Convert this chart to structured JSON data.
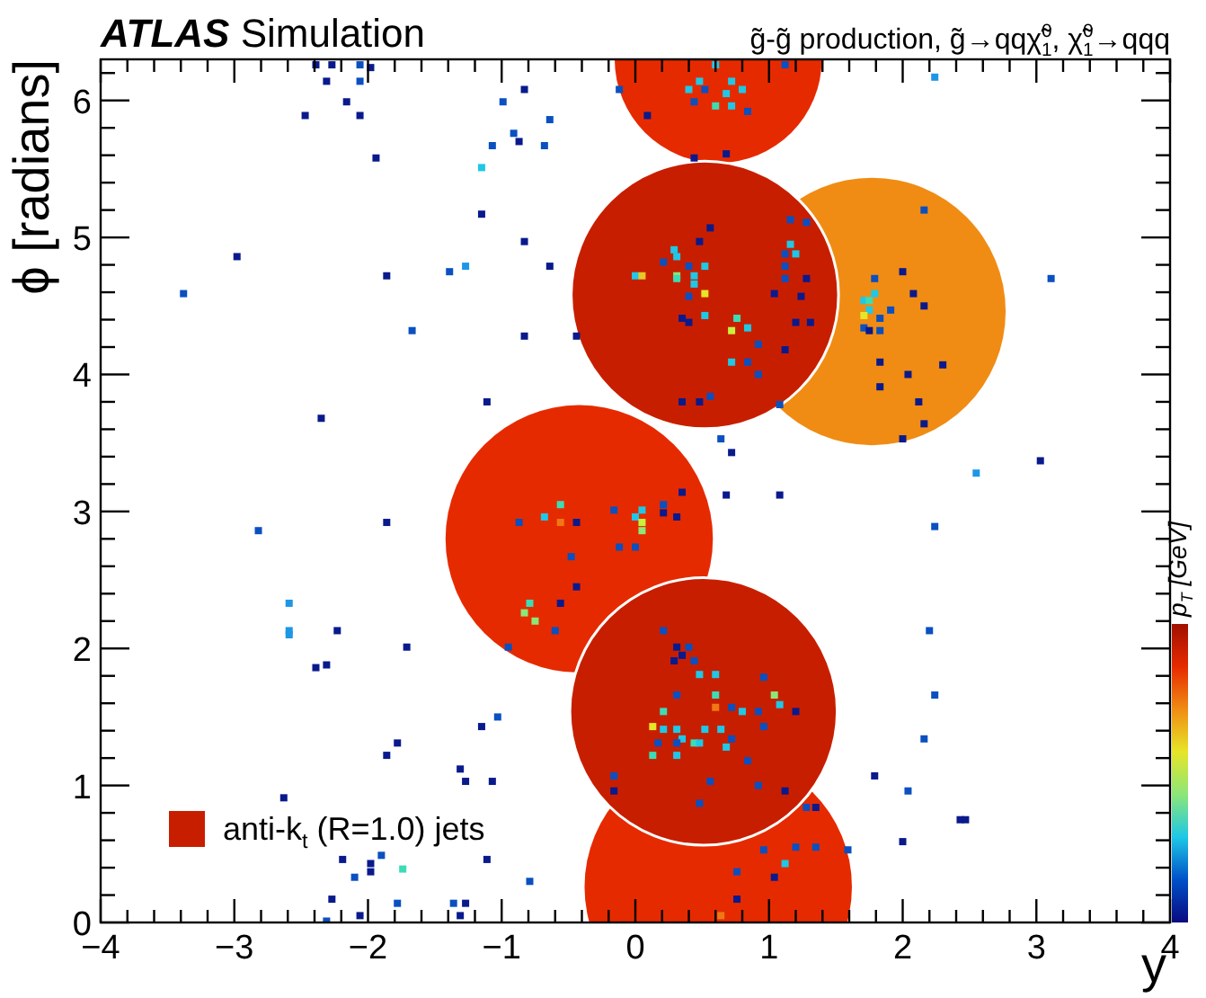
{
  "chart_data": {
    "type": "scatter",
    "title": "ATLAS Simulation",
    "subtitle": "g̃-g̃ production, g̃→qqχ̃$^{0}$$_{1}$, χ̃$^{0}$$_{1}$→qqq",
    "xlabel": "y",
    "ylabel": "ϕ [radians]",
    "clabel": "p$_{T}$ [GeV]",
    "xlim": [
      -4,
      4
    ],
    "ylim": [
      0,
      6.3
    ],
    "xticks": [
      {
        "value": -4,
        "label": "−4"
      },
      {
        "value": -3.8,
        "label": null
      },
      {
        "value": -3.6,
        "label": null
      },
      {
        "value": -3.4,
        "label": null
      },
      {
        "value": -3.2,
        "label": null
      },
      {
        "value": -3,
        "label": "−3"
      },
      {
        "value": -2.8,
        "label": null
      },
      {
        "value": -2.6,
        "label": null
      },
      {
        "value": -2.4,
        "label": null
      },
      {
        "value": -2.2,
        "label": null
      },
      {
        "value": -2,
        "label": "−2"
      },
      {
        "value": -1.8,
        "label": null
      },
      {
        "value": -1.6,
        "label": null
      },
      {
        "value": -1.4,
        "label": null
      },
      {
        "value": -1.2,
        "label": null
      },
      {
        "value": -1,
        "label": "−1"
      },
      {
        "value": -0.8,
        "label": null
      },
      {
        "value": -0.6,
        "label": null
      },
      {
        "value": -0.4,
        "label": null
      },
      {
        "value": -0.2,
        "label": null
      },
      0,
      {
        "value": 0.2,
        "label": null
      },
      {
        "value": 0.4,
        "label": null
      },
      {
        "value": 0.6,
        "label": null
      },
      {
        "value": 0.8,
        "label": null
      },
      1,
      {
        "value": 1.2,
        "label": null
      },
      {
        "value": 1.4,
        "label": null
      },
      {
        "value": 1.6,
        "label": null
      },
      {
        "value": 1.8,
        "label": null
      },
      2,
      {
        "value": 2.2,
        "label": null
      },
      {
        "value": 2.4,
        "label": null
      },
      {
        "value": 2.6,
        "label": null
      },
      {
        "value": 2.8,
        "label": null
      },
      3,
      {
        "value": 3.2,
        "label": null
      },
      {
        "value": 3.4,
        "label": null
      },
      {
        "value": 3.6,
        "label": null
      },
      {
        "value": 3.8,
        "label": null
      },
      4
    ],
    "yticks": [
      0,
      {
        "value": 0.2,
        "label": null
      },
      {
        "value": 0.4,
        "label": null
      },
      {
        "value": 0.6,
        "label": null
      },
      {
        "value": 0.8,
        "label": null
      },
      1,
      {
        "value": 1.2,
        "label": null
      },
      {
        "value": 1.4,
        "label": null
      },
      {
        "value": 1.6,
        "label": null
      },
      {
        "value": 1.8,
        "label": null
      },
      2,
      {
        "value": 2.2,
        "label": null
      },
      {
        "value": 2.4,
        "label": null
      },
      {
        "value": 2.6,
        "label": null
      },
      {
        "value": 2.8,
        "label": null
      },
      3,
      {
        "value": 3.2,
        "label": null
      },
      {
        "value": 3.4,
        "label": null
      },
      {
        "value": 3.6,
        "label": null
      },
      {
        "value": 3.8,
        "label": null
      },
      4,
      {
        "value": 4.2,
        "label": null
      },
      {
        "value": 4.4,
        "label": null
      },
      {
        "value": 4.6,
        "label": null
      },
      {
        "value": 4.8,
        "label": null
      },
      5,
      {
        "value": 5.2,
        "label": null
      },
      {
        "value": 5.4,
        "label": null
      },
      {
        "value": 5.6,
        "label": null
      },
      {
        "value": 5.8,
        "label": null
      },
      6,
      {
        "value": 6.2,
        "label": null
      }
    ],
    "grid": false,
    "legend": "bottom left",
    "series": [
      {
        "type": "bubble",
        "name": "anti-k$_{t}$ (R=1.0) jets",
        "color": "#c81e00",
        "x": [
          0.62,
          0.62,
          -0.42,
          1.77,
          0.52,
          0.51
        ],
        "values": [
          0.26,
          6.3,
          2.8,
          4.46,
          4.58,
          1.54
        ],
        "sizes": [
          1,
          0.6,
          1,
          1,
          1,
          1
        ],
        "colors": [
          "#e62a00",
          "#e62a00",
          "#e62a00",
          "#f08c14",
          "#c81e00",
          "#c81e00"
        ]
      },
      {
        "type": "scatter",
        "marker": "square",
        "x": [
          -2.39,
          -2.27,
          -2.06,
          -1.98,
          -2.31,
          -2.06,
          -2.16,
          -2.47,
          -2.06,
          -1.94,
          -0.83,
          -0.99,
          -0.91,
          -0.87,
          -1.07,
          -0.68,
          -0.64,
          -1.15,
          -1.15,
          -0.83,
          -0.64,
          -1.27,
          -1.39,
          -1.86,
          -2.98,
          -3.38,
          -1.67,
          -0.83,
          -0.44,
          -1.11,
          -2.35,
          -0.12,
          0.09,
          0.4,
          0.48,
          0.52,
          0.72,
          0.68,
          0.8,
          0.44,
          0.6,
          0.72,
          0.84,
          0.44,
          0.68,
          0.6,
          1.12,
          2.24,
          0.56,
          0.48,
          0.29,
          0.21,
          0.31,
          0.4,
          0.52,
          0.0,
          0.05,
          0.31,
          0.44,
          0.31,
          0.44,
          0.52,
          0.4,
          0.35,
          0.4,
          0.52,
          0.76,
          0.72,
          0.84,
          0.92,
          0.72,
          0.84,
          0.92,
          0.35,
          0.48,
          0.56,
          1.16,
          1.28,
          1.16,
          1.2,
          1.12,
          1.12,
          1.12,
          1.28,
          1.04,
          1.24,
          1.2,
          1.31,
          1.12,
          1.08,
          2.16,
          2.0,
          1.79,
          2.08,
          2.16,
          1.71,
          1.75,
          1.79,
          1.75,
          1.91,
          1.71,
          1.83,
          1.71,
          1.75,
          1.83,
          1.83,
          2.3,
          2.04,
          1.83,
          2.12,
          2.16,
          2.0,
          3.11,
          2.55,
          3.03,
          0.64,
          0.72,
          0.35,
          0.68,
          1.08,
          -0.87,
          -0.68,
          -0.56,
          -0.56,
          -0.44,
          -0.48,
          -0.44,
          -0.56,
          -0.79,
          -0.83,
          -0.75,
          -0.6,
          -0.95,
          -0.16,
          0.05,
          0.21,
          0.21,
          0.0,
          0.05,
          0.05,
          0.31,
          -0.12,
          0.0,
          0.21,
          0.31,
          0.4,
          0.35,
          0.29,
          0.44,
          0.48,
          0.6,
          0.31,
          0.6,
          0.21,
          0.6,
          0.72,
          0.8,
          0.92,
          0.96,
          1.04,
          1.08,
          1.2,
          0.13,
          0.21,
          0.31,
          0.52,
          0.64,
          0.35,
          0.17,
          0.31,
          0.44,
          0.48,
          0.72,
          0.68,
          0.31,
          0.13,
          0.96,
          0.84,
          -0.16,
          -0.16,
          0.56,
          0.92,
          1.12,
          0.48,
          1.28,
          1.35,
          0.96,
          1.2,
          1.35,
          1.12,
          0.76,
          1.04,
          0.76,
          0.64,
          1.59,
          2.24,
          2.2,
          2.24,
          2.16,
          1.79,
          2.04,
          2.43,
          2.47,
          2.0,
          -2.82,
          -2.59,
          -2.59,
          -2.59,
          -2.23,
          -2.39,
          -2.31,
          -1.86,
          -1.71,
          -1.03,
          -1.15,
          -1.78,
          -1.86,
          -1.31,
          -1.27,
          -1.07,
          -2.63,
          -2.19,
          -1.9,
          -1.98,
          -1.98,
          -2.1,
          -1.74,
          -1.11,
          -0.79,
          -2.27,
          -1.78,
          -1.36,
          -1.27,
          -2.06,
          -1.31,
          -2.31
        ],
        "values": [
          6.26,
          6.26,
          6.26,
          6.24,
          6.14,
          6.14,
          5.99,
          5.89,
          5.89,
          5.58,
          6.08,
          5.99,
          5.76,
          5.7,
          5.67,
          5.67,
          5.86,
          5.51,
          5.17,
          4.97,
          4.79,
          4.79,
          4.75,
          4.72,
          4.86,
          4.59,
          4.32,
          4.28,
          4.28,
          3.8,
          3.68,
          6.08,
          5.89,
          6.08,
          6.14,
          6.08,
          6.14,
          6.05,
          6.08,
          5.99,
          5.96,
          5.96,
          5.92,
          5.58,
          5.61,
          6.26,
          6.26,
          6.17,
          5.07,
          4.97,
          4.91,
          4.82,
          4.86,
          4.79,
          4.79,
          4.72,
          4.72,
          4.72,
          4.72,
          4.7,
          4.66,
          4.59,
          4.57,
          4.41,
          4.38,
          4.43,
          4.41,
          4.32,
          4.34,
          4.22,
          4.09,
          4.09,
          4.0,
          3.8,
          3.8,
          3.84,
          5.13,
          5.11,
          4.95,
          4.88,
          4.88,
          4.79,
          4.7,
          4.7,
          4.59,
          4.57,
          4.38,
          4.38,
          4.18,
          3.78,
          5.2,
          4.75,
          4.7,
          4.59,
          4.5,
          4.54,
          4.54,
          4.59,
          4.47,
          4.47,
          4.43,
          4.41,
          4.34,
          4.32,
          4.32,
          4.09,
          4.07,
          4.0,
          3.91,
          3.8,
          3.64,
          3.53,
          4.7,
          3.28,
          3.37,
          3.53,
          3.43,
          3.14,
          3.12,
          3.12,
          2.92,
          2.96,
          3.05,
          2.92,
          2.92,
          2.67,
          2.45,
          2.33,
          2.33,
          2.26,
          2.2,
          2.13,
          2.01,
          3.01,
          3.01,
          3.05,
          2.99,
          2.96,
          2.92,
          2.86,
          2.96,
          2.74,
          2.74,
          2.13,
          2.01,
          2.01,
          1.95,
          1.91,
          1.91,
          1.81,
          1.81,
          1.66,
          1.66,
          1.54,
          1.57,
          1.57,
          1.54,
          1.54,
          1.79,
          1.66,
          1.59,
          1.54,
          1.43,
          1.41,
          1.41,
          1.41,
          1.41,
          1.34,
          1.31,
          1.31,
          1.31,
          1.31,
          1.34,
          1.28,
          1.22,
          1.22,
          1.43,
          1.18,
          1.07,
          0.96,
          1.03,
          1.0,
          0.96,
          0.87,
          0.84,
          0.84,
          0.53,
          0.55,
          0.55,
          0.43,
          0.37,
          0.33,
          0.17,
          0.05,
          0.53,
          2.89,
          2.13,
          1.66,
          1.34,
          1.07,
          0.96,
          0.75,
          0.75,
          0.59,
          2.86,
          2.33,
          2.13,
          2.1,
          2.13,
          1.86,
          1.88,
          2.92,
          2.01,
          1.5,
          1.43,
          1.31,
          1.22,
          1.12,
          1.03,
          1.03,
          0.91,
          0.46,
          0.49,
          0.43,
          0.37,
          0.33,
          0.39,
          0.46,
          0.3,
          0.17,
          0.14,
          0.14,
          0.14,
          0.05,
          0.05,
          0.01
        ],
        "colors": [
          "#0a1a8c",
          "#0a1a8c",
          "#0a50c0",
          "#0a1a8c",
          "#0a1a8c",
          "#0a50c0",
          "#0a1a8c",
          "#0a1a8c",
          "#0a1a8c",
          "#0a1a8c",
          "#0a1a8c",
          "#0a50c0",
          "#0a50c0",
          "#0a1a8c",
          "#0a50c0",
          "#0a50c0",
          "#0a50c0",
          "#1ec8e6",
          "#0a1a8c",
          "#0a1a8c",
          "#0a1a8c",
          "#1e96e6",
          "#0a50c0",
          "#0a1a8c",
          "#0a1a8c",
          "#0a50c0",
          "#0a50c0",
          "#0a1a8c",
          "#0a1a8c",
          "#0a1a8c",
          "#0a1a8c",
          "#0a50c0",
          "#0a1a8c",
          "#1ec8e6",
          "#1ec8e6",
          "#0a50c0",
          "#1ec8e6",
          "#1ec8e6",
          "#1ec8e6",
          "#0a50c0",
          "#3cdcb4",
          "#1ec8e6",
          "#0a50c0",
          "#0a1a8c",
          "#0a1a8c",
          "#1ec8e6",
          "#0a50c0",
          "#1e96e6",
          "#0a1a8c",
          "#0a1a8c",
          "#1ec8e6",
          "#0a50c0",
          "#1ec8e6",
          "#0a50c0",
          "#1ec8e6",
          "#1ec8e6",
          "#e6c828",
          "#8ce678",
          "#1ec8e6",
          "#3cdcb4",
          "#1ec8e6",
          "#e6e628",
          "#0a50c0",
          "#0a1a8c",
          "#0a1a8c",
          "#1ec8e6",
          "#3cdcb4",
          "#c8f03c",
          "#1ec8e6",
          "#0a50c0",
          "#1ec8e6",
          "#0a50c0",
          "#0a50c0",
          "#0a1a8c",
          "#0a1a8c",
          "#0a50c0",
          "#0a50c0",
          "#0a50c0",
          "#1ec8e6",
          "#1ec8e6",
          "#0a50c0",
          "#0a50c0",
          "#0a50c0",
          "#0a1a8c",
          "#0a1a8c",
          "#0a1a8c",
          "#0a1a8c",
          "#0a1a8c",
          "#0a1a8c",
          "#0a50c0",
          "#0a50c0",
          "#0a1a8c",
          "#0a50c0",
          "#0a1a8c",
          "#0a1a8c",
          "#1ec8e6",
          "#3cdcb4",
          "#1ec8e6",
          "#1ec8e6",
          "#0a50c0",
          "#e6e628",
          "#0a50c0",
          "#0a50c0",
          "#0a1a8c",
          "#0a50c0",
          "#0a1a8c",
          "#0a1a8c",
          "#0a1a8c",
          "#0a1a8c",
          "#0a1a8c",
          "#0a1a8c",
          "#0a1a8c",
          "#0a50c0",
          "#1e96e6",
          "#0a1a8c",
          "#0a50c0",
          "#0a1a8c",
          "#0a1a8c",
          "#0a1a8c",
          "#0a1a8c",
          "#0a50c0",
          "#1ec8e6",
          "#3cdcb4",
          "#f07814",
          "#0a1a8c",
          "#0a50c0",
          "#0a1a8c",
          "#0a1a8c",
          "#3cdcb4",
          "#8ce678",
          "#8ce678",
          "#0a50c0",
          "#0a50c0",
          "#0a50c0",
          "#1ec8e6",
          "#0a50c0",
          "#0a1a8c",
          "#1ec8e6",
          "#c8f03c",
          "#8ce678",
          "#0a1a8c",
          "#0a50c0",
          "#0a50c0",
          "#0a50c0",
          "#0a1a8c",
          "#0a50c0",
          "#0a1a8c",
          "#0a1a8c",
          "#0a50c0",
          "#1ec8e6",
          "#1ec8e6",
          "#0a50c0",
          "#3cdcb4",
          "#3cdcb4",
          "#f07814",
          "#0a50c0",
          "#1ec8e6",
          "#0a50c0",
          "#0a50c0",
          "#8ce678",
          "#1ec8e6",
          "#0a1a8c",
          "#e6e628",
          "#1ec8e6",
          "#1ec8e6",
          "#1ec8e6",
          "#1ec8e6",
          "#1ec8e6",
          "#0a50c0",
          "#0a50c0",
          "#3cdcb4",
          "#1ec8e6",
          "#0a50c0",
          "#1ec8e6",
          "#1ec8e6",
          "#3cdcb4",
          "#0a50c0",
          "#0a50c0",
          "#0a50c0",
          "#0a1a8c",
          "#0a50c0",
          "#0a50c0",
          "#0a1a8c",
          "#0a50c0",
          "#0a50c0",
          "#0a1a8c",
          "#0a50c0",
          "#0a50c0",
          "#0a50c0",
          "#1ec8e6",
          "#0a50c0",
          "#0a1a8c",
          "#0a1a8c",
          "#f07814",
          "#0a50c0",
          "#0a50c0",
          "#0a50c0",
          "#0a50c0",
          "#0a50c0",
          "#0a1a8c",
          "#0a50c0",
          "#0a1a8c",
          "#0a1a8c",
          "#0a1a8c",
          "#0a50c0",
          "#1e96e6",
          "#1e96e6",
          "#1e96e6",
          "#0a1a8c",
          "#0a1a8c",
          "#0a1a8c",
          "#0a1a8c",
          "#0a1a8c",
          "#0a50c0",
          "#0a1a8c",
          "#0a1a8c",
          "#0a1a8c",
          "#0a1a8c",
          "#0a1a8c",
          "#0a1a8c",
          "#0a1a8c",
          "#0a1a8c",
          "#0a50c0",
          "#0a1a8c",
          "#0a1a8c",
          "#0a50c0",
          "#3cdcb4",
          "#0a1a8c",
          "#0a50c0",
          "#0a1a8c",
          "#0a50c0",
          "#0a50c0",
          "#0a1a8c",
          "#0a1a8c",
          "#0a1a8c",
          "#0a50c0"
        ]
      }
    ]
  }
}
